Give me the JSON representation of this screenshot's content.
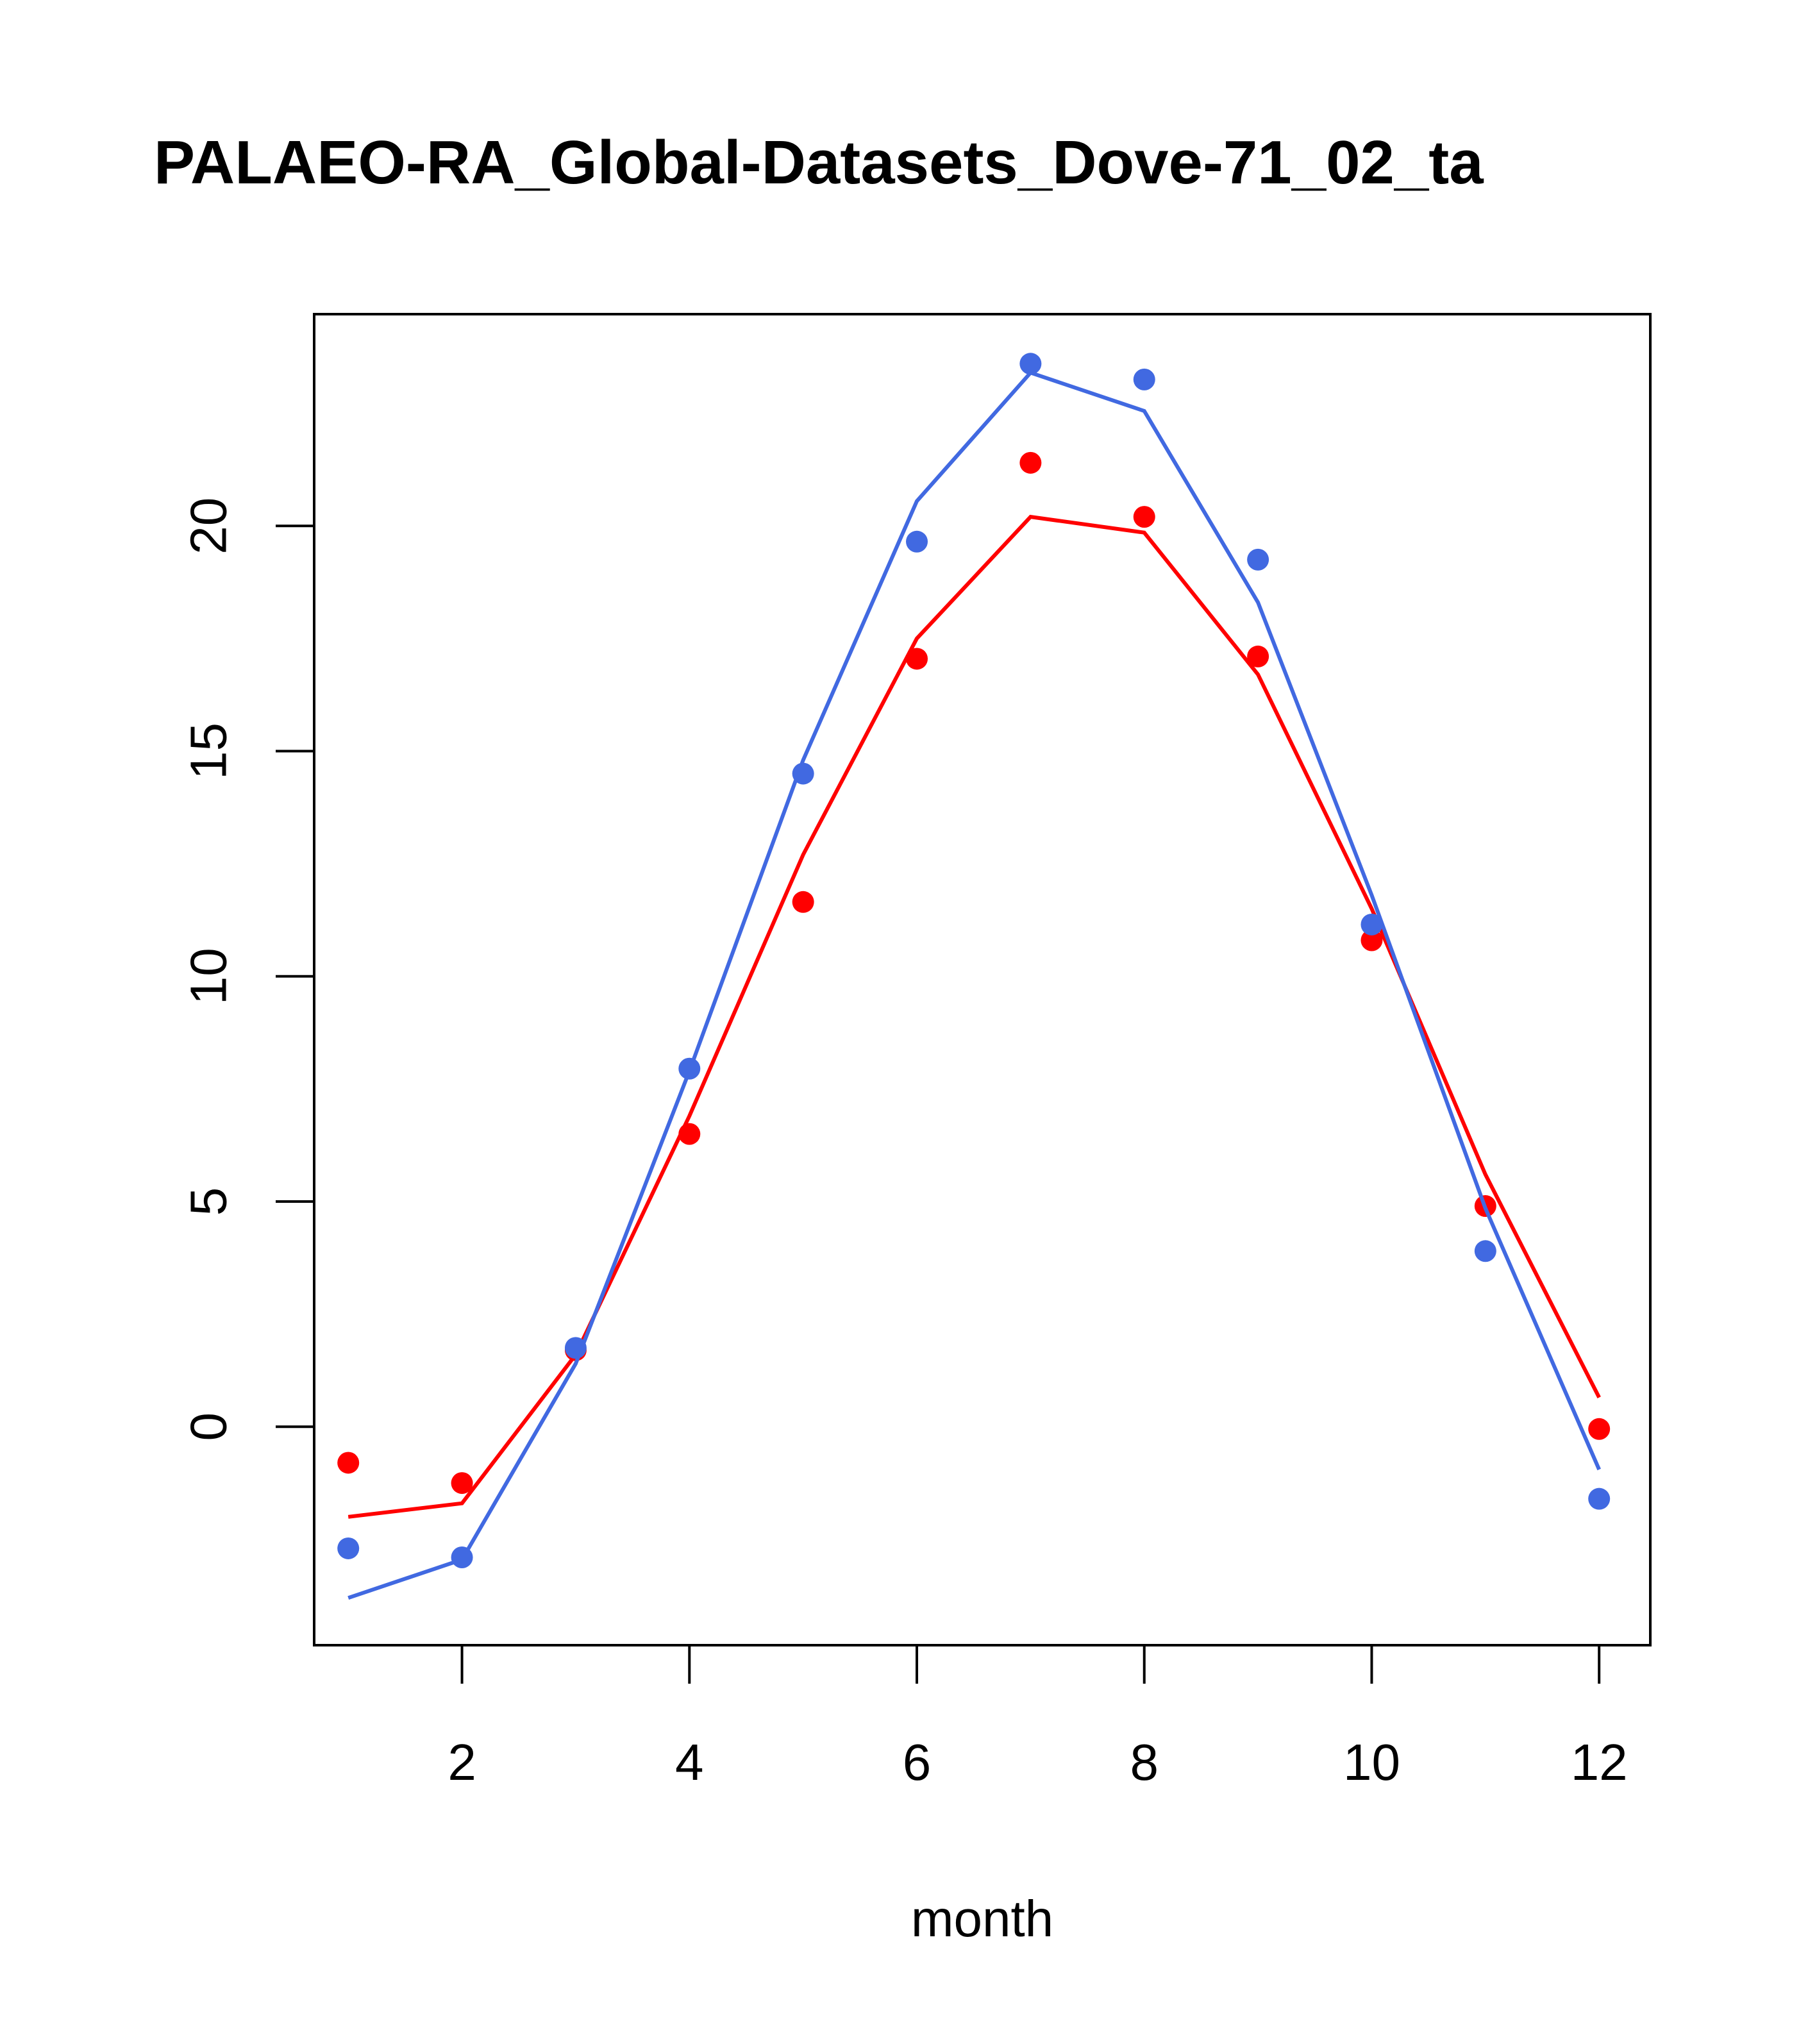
{
  "chart_data": {
    "type": "line",
    "title": "PALAEO-RA_Global-Datasets_Dove-71_02_ta",
    "xlabel": "month",
    "ylabel": "",
    "xlim": [
      0.7,
      12.45
    ],
    "ylim": [
      -4.85,
      24.7
    ],
    "x_ticks": [
      2,
      4,
      6,
      8,
      10,
      12
    ],
    "y_ticks": [
      0,
      5,
      10,
      15,
      20
    ],
    "grid": false,
    "x": [
      1,
      2,
      3,
      4,
      5,
      6,
      7,
      8,
      9,
      10,
      11,
      12
    ],
    "series": [
      {
        "color": "#ff0000",
        "points": [
          -0.8,
          -1.25,
          1.7,
          6.5,
          11.65,
          17.05,
          21.4,
          20.2,
          17.1,
          10.8,
          4.9,
          -0.05
        ],
        "line": [
          -2.0,
          -1.7,
          1.6,
          6.9,
          12.7,
          17.5,
          20.2,
          19.85,
          16.7,
          11.5,
          5.6,
          0.65
        ]
      },
      {
        "color": "#4169e1",
        "points": [
          -2.7,
          -2.9,
          1.75,
          7.95,
          14.5,
          19.65,
          23.6,
          23.25,
          19.25,
          11.15,
          3.9,
          -1.6
        ],
        "line": [
          -3.8,
          -2.95,
          1.4,
          7.9,
          14.8,
          20.55,
          23.4,
          22.55,
          18.3,
          11.8,
          4.85,
          -0.95
        ]
      }
    ]
  }
}
